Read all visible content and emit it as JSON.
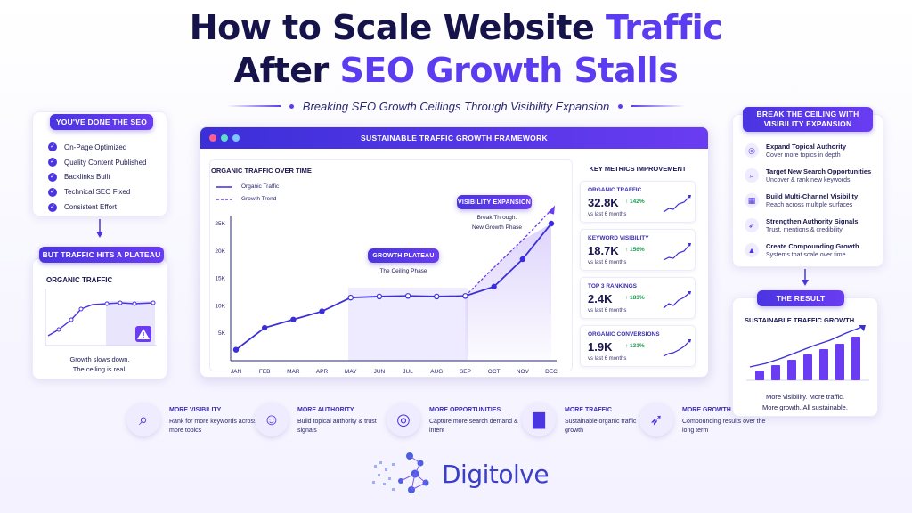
{
  "title": {
    "line1_plain": "How to Scale Website ",
    "line1_accent": "Traffic",
    "line2_plain": "After ",
    "line2_accent": "SEO Growth Stalls"
  },
  "subtitle": "Breaking SEO Growth Ceilings Through Visibility Expansion",
  "left_top": {
    "header": "YOU'VE DONE THE SEO",
    "items": [
      "On-Page Optimized",
      "Quality Content Published",
      "Backlinks Built",
      "Technical SEO Fixed",
      "Consistent Effort"
    ]
  },
  "left_bottom": {
    "header": "BUT TRAFFIC HITS A PLATEAU",
    "chart_title": "ORGANIC TRAFFIC",
    "caption_line1": "Growth slows down.",
    "caption_line2": "The ceiling is real."
  },
  "framework": {
    "title": "SUSTAINABLE TRAFFIC GROWTH FRAMEWORK",
    "chart_title": "ORGANIC TRAFFIC OVER TIME",
    "legend_growth": "Organic Traffic",
    "legend_trend": "Growth Trend",
    "plateau_label": "GROWTH PLATEAU",
    "plateau_sub": "The Ceiling Phase",
    "expansion_label": "VISIBILITY EXPANSION",
    "expansion_sub1": "Break Through.",
    "expansion_sub2": "New Growth Phase",
    "metrics_title": "KEY METRICS IMPROVEMENT",
    "metrics": [
      {
        "label": "ORGANIC TRAFFIC",
        "value": "32.8K",
        "change": "↑ 142%",
        "note": "vs last 6 months"
      },
      {
        "label": "KEYWORD VISIBILITY",
        "value": "18.7K",
        "change": "↑ 156%",
        "note": "vs last 6 months"
      },
      {
        "label": "TOP 3 RANKINGS",
        "value": "2.4K",
        "change": "↑ 183%",
        "note": "vs last 6 months"
      },
      {
        "label": "ORGANIC CONVERSIONS",
        "value": "1.9K",
        "change": "↑ 131%",
        "note": "vs last 6 months"
      }
    ]
  },
  "chart_data": {
    "type": "line",
    "title": "ORGANIC TRAFFIC OVER TIME",
    "categories": [
      "JAN",
      "FEB",
      "MAR",
      "APR",
      "MAY",
      "JUN",
      "JUL",
      "AUG",
      "SEP",
      "OCT",
      "NOV",
      "DEC"
    ],
    "y_ticks": [
      "5K",
      "10K",
      "15K",
      "20K",
      "25K"
    ],
    "ylim": [
      0,
      25000
    ],
    "series": [
      {
        "name": "Organic Traffic",
        "values": [
          2000,
          6000,
          7500,
          9000,
          11500,
          11700,
          11800,
          11700,
          11800,
          13500,
          18500,
          25000
        ]
      },
      {
        "name": "Growth Trend",
        "values": [
          null,
          null,
          null,
          null,
          null,
          null,
          null,
          null,
          11800,
          17000,
          22000,
          27500
        ]
      }
    ],
    "legend_position": "top-left",
    "grid": false
  },
  "right_top": {
    "header_line1": "BREAK THE CEILING WITH",
    "header_line2": "VISIBILITY EXPANSION",
    "items": [
      {
        "icon": "target-icon",
        "glyph": "◎",
        "title": "Expand Topical Authority",
        "desc": "Cover more topics in depth"
      },
      {
        "icon": "search-icon",
        "glyph": "⌕",
        "title": "Target New Search Opportunities",
        "desc": "Uncover & rank new keywords"
      },
      {
        "icon": "channels-icon",
        "glyph": "▦",
        "title": "Build Multi-Channel Visibility",
        "desc": "Reach across multiple surfaces"
      },
      {
        "icon": "rocket-icon",
        "glyph": "➶",
        "title": "Strengthen Authority Signals",
        "desc": "Trust, mentions & credibility"
      },
      {
        "icon": "triangle-icon",
        "glyph": "▲",
        "title": "Create Compounding Growth",
        "desc": "Systems that scale over time"
      }
    ]
  },
  "right_bottom": {
    "header": "THE RESULT",
    "chart_title": "SUSTAINABLE TRAFFIC GROWTH",
    "caption_line1": "More visibility. More traffic.",
    "caption_line2": "More growth. All sustainable."
  },
  "benefits": [
    {
      "icon": "magnifier-icon",
      "glyph": "⌕",
      "title": "MORE VISIBILITY",
      "desc": "Rank for more keywords across more topics"
    },
    {
      "icon": "people-icon",
      "glyph": "☺",
      "title": "MORE AUTHORITY",
      "desc": "Build topical authority & trust signals"
    },
    {
      "icon": "bullseye-icon",
      "glyph": "◎",
      "title": "MORE OPPORTUNITIES",
      "desc": "Capture more search demand & intent"
    },
    {
      "icon": "bar-chart-icon",
      "glyph": "▇",
      "title": "MORE TRAFFIC",
      "desc": "Sustainable organic traffic growth"
    },
    {
      "icon": "rocket-icon",
      "glyph": "➶",
      "title": "MORE GROWTH",
      "desc": "Compounding results over the long term"
    }
  ],
  "brand": {
    "name": "Digitolve"
  },
  "colors": {
    "primary": "#4a35e0",
    "accent": "#6a3cf2",
    "navy": "#15134a",
    "positive": "#1f9d55",
    "warning": "#6a3cf2"
  }
}
